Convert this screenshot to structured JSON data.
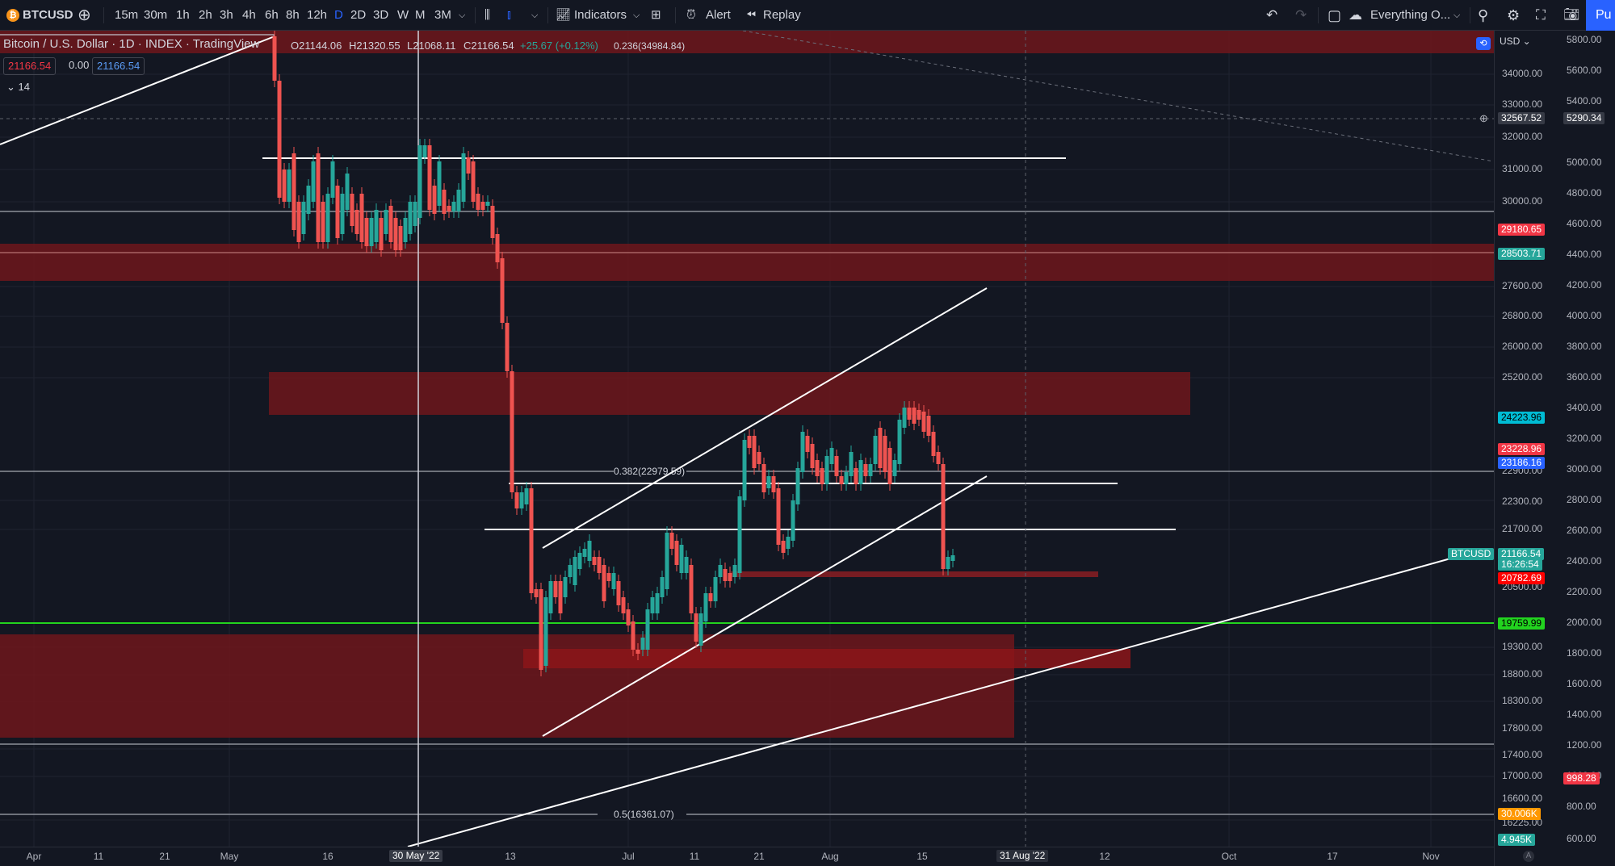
{
  "toolbar": {
    "symbol": "BTCUSD",
    "intervals": [
      "15m",
      "30m",
      "1h",
      "2h",
      "3h",
      "4h",
      "6h",
      "8h",
      "12h",
      "D",
      "2D",
      "3D",
      "W",
      "M",
      "3M"
    ],
    "active_interval": "D",
    "indicators_label": "Indicators",
    "alert_label": "Alert",
    "replay_label": "Replay",
    "layout_label": "Everything O...",
    "publish_label": "Pu"
  },
  "legend": {
    "title": "Bitcoin / U.S. Dollar · 1D · INDEX · TradingView",
    "o": "O21144.06",
    "h": "H21320.55",
    "l": "L21068.11",
    "c": "C21166.54",
    "chg": "+25.67 (+0.12%)",
    "price_a": "21166.54",
    "spread": "0.00",
    "price_b": "21166.54",
    "indicator_count": "14",
    "fib_top": "0.236(34984.84)"
  },
  "colors": {
    "up": "#26a69a",
    "down": "#ef5350",
    "zone": "#7a1a1f",
    "bg": "#131722",
    "green_line": "#22d31f"
  },
  "price_axis": {
    "currency": "USD",
    "labels": [
      "34000.00",
      "33000.00",
      "32000.00",
      "31000.00",
      "30000.00",
      "27600.00",
      "26800.00",
      "26000.00",
      "25200.00",
      "22900.00",
      "22300.00",
      "21700.00",
      "20500.00",
      "19300.00",
      "18800.00",
      "18300.00",
      "17800.00",
      "17400.00",
      "17000.00",
      "16600.00",
      "16225.00"
    ],
    "crosshair": "32567.52"
  },
  "volume_axis": {
    "labels": [
      "5800.00",
      "5600.00",
      "5400.00",
      "5000.00",
      "4800.00",
      "4600.00",
      "4400.00",
      "4200.00",
      "4000.00",
      "3800.00",
      "3600.00",
      "3400.00",
      "3200.00",
      "3000.00",
      "2800.00",
      "2600.00",
      "2400.00",
      "2200.00",
      "2000.00",
      "1800.00",
      "1600.00",
      "1400.00",
      "1200.00",
      "1000.00",
      "800.00",
      "600.00"
    ],
    "crosshair": "5290.34"
  },
  "price_tags": [
    {
      "label": "29180.65",
      "color": "#f23645"
    },
    {
      "label": "28503.71",
      "color": "#26a69a"
    },
    {
      "label": "24223.96",
      "color": "#00bcd4"
    },
    {
      "label": "23228.96",
      "color": "#f23645"
    },
    {
      "label": "23186.16",
      "color": "#2962ff"
    },
    {
      "label": "21166.54",
      "color": "#26a69a"
    },
    {
      "label": "16:26:54",
      "color": "#26a69a"
    },
    {
      "label": "20782.69",
      "color": "#ff0000"
    },
    {
      "label": "19759.99",
      "color": "#22d31f"
    },
    {
      "label": "998.28",
      "color": "#f23645"
    },
    {
      "label": "30.006K",
      "color": "#ff9800"
    },
    {
      "label": "4.945K",
      "color": "#26a69a"
    }
  ],
  "symbol_tag": "BTCUSD",
  "time_axis": {
    "labels": [
      "Apr",
      "11",
      "21",
      "May",
      "16",
      "13",
      "Jul",
      "11",
      "21",
      "Aug",
      "15",
      "12",
      "Oct",
      "17",
      "Nov"
    ],
    "crosshair_date": "30 May '22",
    "future_date": "31 Aug '22"
  },
  "fib_labels": [
    "0.382(22979.59)",
    "0.5(16361.07)"
  ],
  "chart_data": {
    "type": "candlestick",
    "symbol": "BTCUSD",
    "interval": "1D",
    "approx_range": {
      "start": "May 2022",
      "end": "Aug 2022"
    },
    "last_price": 21166.54,
    "horizontal_levels": [
      31400,
      30200,
      28800,
      22900,
      21900,
      19760,
      17600,
      16361
    ],
    "fib_levels": [
      {
        "level": 0.236,
        "price": 34984.84
      },
      {
        "level": 0.382,
        "price": 22979.59
      },
      {
        "level": 0.5,
        "price": 16361.07
      }
    ]
  }
}
